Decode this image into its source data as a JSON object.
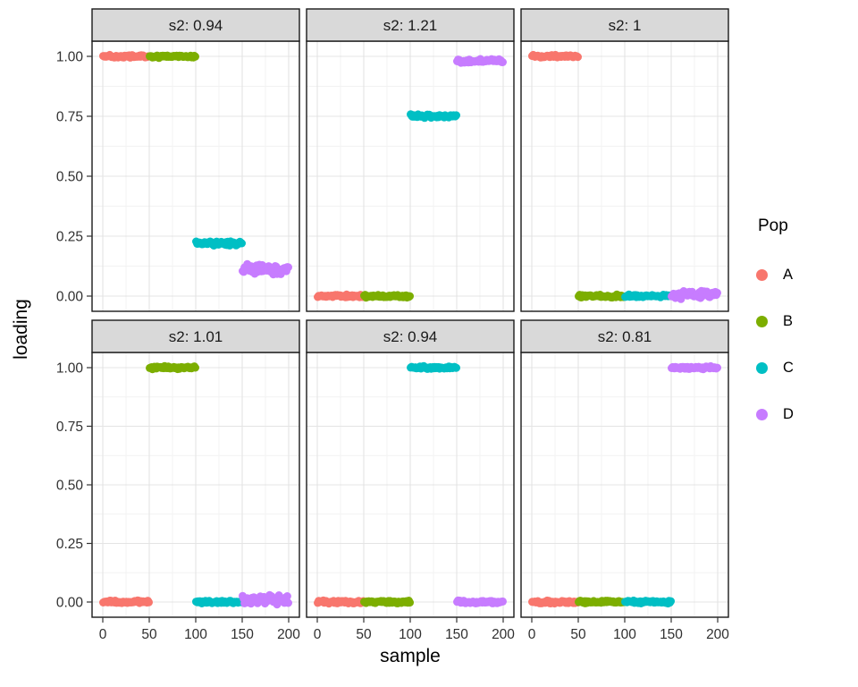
{
  "chart_data": {
    "type": "scatter",
    "title": "",
    "xlabel": "sample",
    "ylabel": "loading",
    "facet_variable": "s2",
    "xlim": [
      0,
      200
    ],
    "ylim": [
      0,
      1
    ],
    "x_ticks": [
      0,
      50,
      100,
      150,
      200
    ],
    "x_tick_labels": [
      "0",
      "50",
      "100",
      "150",
      "200"
    ],
    "x_minor": [
      25,
      75,
      125,
      175
    ],
    "y_ticks": [
      0,
      0.25,
      0.5,
      0.75,
      1
    ],
    "y_tick_labels": [
      "0.00",
      "0.25",
      "0.50",
      "0.75",
      "1.00"
    ],
    "y_minor": [
      0.125,
      0.375,
      0.625,
      0.875
    ],
    "grid": "major+minor",
    "points_per_group": 50,
    "facets": [
      {
        "label": "s2: 0.94",
        "segments": [
          {
            "pop": "A",
            "x_start": 0,
            "x_end": 50,
            "loading": 1.0,
            "spread": 0.004
          },
          {
            "pop": "B",
            "x_start": 50,
            "x_end": 100,
            "loading": 1.0,
            "spread": 0.004
          },
          {
            "pop": "C",
            "x_start": 100,
            "x_end": 150,
            "loading": 0.22,
            "spread": 0.006
          },
          {
            "pop": "D",
            "x_start": 150,
            "x_end": 200,
            "loading": 0.115,
            "spread": 0.014
          }
        ]
      },
      {
        "label": "s2: 1.21",
        "segments": [
          {
            "pop": "A",
            "x_start": 0,
            "x_end": 50,
            "loading": 0.0,
            "spread": 0.004
          },
          {
            "pop": "B",
            "x_start": 50,
            "x_end": 100,
            "loading": 0.0,
            "spread": 0.004
          },
          {
            "pop": "C",
            "x_start": 100,
            "x_end": 150,
            "loading": 0.75,
            "spread": 0.005
          },
          {
            "pop": "D",
            "x_start": 150,
            "x_end": 200,
            "loading": 0.98,
            "spread": 0.005
          }
        ]
      },
      {
        "label": "s2: 1",
        "segments": [
          {
            "pop": "A",
            "x_start": 0,
            "x_end": 50,
            "loading": 1.0,
            "spread": 0.004
          },
          {
            "pop": "B",
            "x_start": 50,
            "x_end": 100,
            "loading": 0.0,
            "spread": 0.004
          },
          {
            "pop": "C",
            "x_start": 100,
            "x_end": 150,
            "loading": 0.0,
            "spread": 0.004
          },
          {
            "pop": "D",
            "x_start": 150,
            "x_end": 200,
            "loading": 0.008,
            "spread": 0.012
          }
        ]
      },
      {
        "label": "s2: 1.01",
        "segments": [
          {
            "pop": "A",
            "x_start": 0,
            "x_end": 50,
            "loading": 0.0,
            "spread": 0.004
          },
          {
            "pop": "B",
            "x_start": 50,
            "x_end": 100,
            "loading": 1.0,
            "spread": 0.004
          },
          {
            "pop": "C",
            "x_start": 100,
            "x_end": 150,
            "loading": 0.0,
            "spread": 0.004
          },
          {
            "pop": "D",
            "x_start": 150,
            "x_end": 200,
            "loading": 0.01,
            "spread": 0.012
          }
        ]
      },
      {
        "label": "s2: 0.94",
        "segments": [
          {
            "pop": "A",
            "x_start": 0,
            "x_end": 50,
            "loading": 0.0,
            "spread": 0.004
          },
          {
            "pop": "B",
            "x_start": 50,
            "x_end": 100,
            "loading": 0.0,
            "spread": 0.004
          },
          {
            "pop": "C",
            "x_start": 100,
            "x_end": 150,
            "loading": 1.0,
            "spread": 0.004
          },
          {
            "pop": "D",
            "x_start": 150,
            "x_end": 200,
            "loading": 0.0,
            "spread": 0.004
          }
        ]
      },
      {
        "label": "s2: 0.81",
        "segments": [
          {
            "pop": "A",
            "x_start": 0,
            "x_end": 50,
            "loading": 0.0,
            "spread": 0.004
          },
          {
            "pop": "B",
            "x_start": 50,
            "x_end": 100,
            "loading": 0.0,
            "spread": 0.004
          },
          {
            "pop": "C",
            "x_start": 100,
            "x_end": 150,
            "loading": 0.0,
            "spread": 0.004
          },
          {
            "pop": "D",
            "x_start": 150,
            "x_end": 200,
            "loading": 1.0,
            "spread": 0.004
          }
        ]
      }
    ],
    "legend": {
      "title": "Pop",
      "position": "right",
      "entries": [
        {
          "label": "A",
          "color": "#F8766D"
        },
        {
          "label": "B",
          "color": "#7CAE00"
        },
        {
          "label": "C",
          "color": "#00BFC4"
        },
        {
          "label": "D",
          "color": "#C77CFF"
        }
      ]
    },
    "style": {
      "background": "#FFFFFF",
      "strip_fill": "#D9D9D9",
      "strip_text_color": "#1A1A1A",
      "panel_border": "#1A1A1A",
      "grid_major": "#E4E4E4",
      "grid_minor": "#F2F2F2",
      "tick_label_color": "#303030",
      "axis_title_color": "#000000",
      "point_radius": 4.5
    }
  }
}
